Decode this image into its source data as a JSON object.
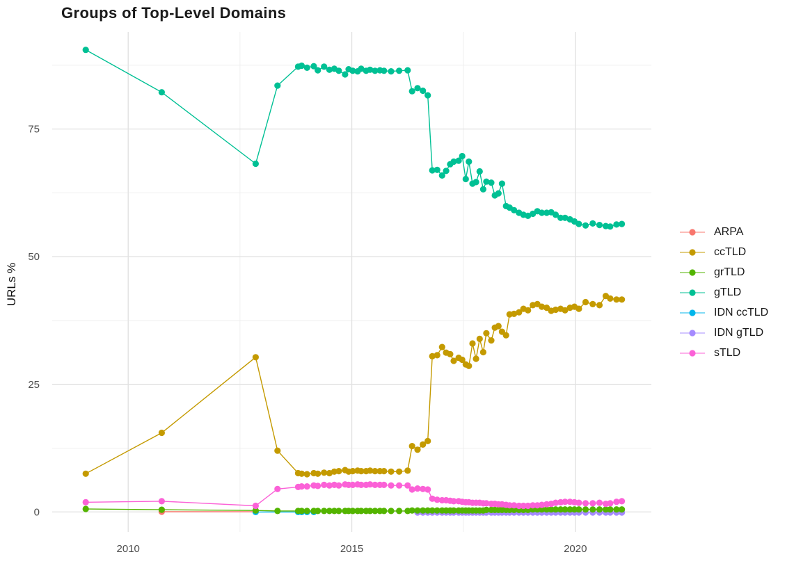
{
  "chart_data": {
    "type": "line",
    "title": "Groups of Top-Level Domains",
    "xlabel": "",
    "ylabel": "URLs %",
    "xlim": [
      2008.3,
      2021.7
    ],
    "ylim": [
      -3.9,
      94.0
    ],
    "legend_position": "right",
    "grid": {
      "x_major": [
        2010,
        2015,
        2020
      ],
      "x_minor": [
        2012.5,
        2017.5
      ],
      "y_major": [
        0,
        25,
        50,
        75
      ],
      "y_minor": [
        12.5,
        37.5,
        62.5,
        87.5
      ],
      "major_color": "#e2e2e2",
      "minor_color": "#efefef"
    },
    "x_ticks": [
      {
        "value": 2010,
        "label": "2010"
      },
      {
        "value": 2015,
        "label": "2015"
      },
      {
        "value": 2020,
        "label": "2020"
      }
    ],
    "y_ticks": [
      {
        "value": 0,
        "label": "0"
      },
      {
        "value": 25,
        "label": "25"
      },
      {
        "value": 50,
        "label": "50"
      },
      {
        "value": 75,
        "label": "75"
      }
    ],
    "series": [
      {
        "key": "arpa",
        "label": "ARPA",
        "color": "#F8766D",
        "z": 1,
        "x": [
          2010.75,
          2012.85
        ],
        "y": [
          0.05,
          0.05
        ]
      },
      {
        "key": "cctld",
        "label": "ccTLD",
        "color": "#C49A00",
        "z": 2,
        "x": [
          2009.05,
          2010.75,
          2012.85,
          2013.34,
          2013.8,
          2013.88,
          2014.0,
          2014.15,
          2014.24,
          2014.38,
          2014.5,
          2014.61,
          2014.71,
          2014.85,
          2014.93,
          2015.02,
          2015.13,
          2015.21,
          2015.32,
          2015.41,
          2015.52,
          2015.63,
          2015.72,
          2015.88,
          2016.06,
          2016.25,
          2016.35,
          2016.47,
          2016.59,
          2016.7,
          2016.8,
          2016.91,
          2017.02,
          2017.11,
          2017.2,
          2017.28,
          2017.39,
          2017.47,
          2017.55,
          2017.62,
          2017.7,
          2017.78,
          2017.86,
          2017.94,
          2018.01,
          2018.12,
          2018.2,
          2018.28,
          2018.36,
          2018.45,
          2018.53,
          2018.63,
          2018.74,
          2018.84,
          2018.94,
          2019.05,
          2019.15,
          2019.25,
          2019.36,
          2019.46,
          2019.56,
          2019.67,
          2019.77,
          2019.88,
          2019.98,
          2020.08,
          2020.23,
          2020.39,
          2020.54,
          2020.68,
          2020.78,
          2020.92,
          2021.04
        ],
        "y": [
          7.5,
          15.5,
          30.3,
          12.0,
          7.6,
          7.5,
          7.4,
          7.6,
          7.5,
          7.7,
          7.6,
          7.9,
          8.0,
          8.2,
          7.9,
          8.0,
          8.1,
          8.0,
          8.0,
          8.1,
          8.0,
          8.0,
          8.0,
          7.9,
          7.9,
          8.1,
          12.9,
          12.2,
          13.2,
          13.9,
          30.5,
          30.7,
          32.3,
          31.2,
          30.9,
          29.6,
          30.2,
          29.8,
          28.9,
          28.6,
          33.0,
          30.0,
          33.9,
          31.3,
          35.0,
          33.6,
          36.1,
          36.4,
          35.3,
          34.6,
          38.7,
          38.8,
          39.1,
          39.8,
          39.5,
          40.5,
          40.7,
          40.2,
          40.0,
          39.4,
          39.6,
          39.8,
          39.5,
          40.0,
          40.2,
          39.8,
          41.1,
          40.7,
          40.5,
          42.3,
          41.8,
          41.6,
          41.6
        ]
      },
      {
        "key": "grtld",
        "label": "grTLD",
        "color": "#53B400",
        "z": 5,
        "x": [
          2009.05,
          2010.75,
          2012.85,
          2013.34,
          2013.8,
          2013.88,
          2014.0,
          2014.15,
          2014.24,
          2014.38,
          2014.5,
          2014.61,
          2014.71,
          2014.85,
          2014.93,
          2015.02,
          2015.13,
          2015.21,
          2015.32,
          2015.41,
          2015.52,
          2015.63,
          2015.72,
          2015.88,
          2016.06,
          2016.25,
          2016.35,
          2016.47,
          2016.59,
          2016.7,
          2016.8,
          2016.91,
          2017.02,
          2017.11,
          2017.2,
          2017.28,
          2017.39,
          2017.47,
          2017.55,
          2017.62,
          2017.7,
          2017.78,
          2017.86,
          2017.94,
          2018.01,
          2018.12,
          2018.2,
          2018.28,
          2018.36,
          2018.45,
          2018.53,
          2018.63,
          2018.74,
          2018.84,
          2018.94,
          2019.05,
          2019.15,
          2019.25,
          2019.36,
          2019.46,
          2019.56,
          2019.67,
          2019.77,
          2019.88,
          2019.98,
          2020.08,
          2020.23,
          2020.39,
          2020.54,
          2020.68,
          2020.78,
          2020.92,
          2021.04
        ],
        "y": [
          0.6,
          0.45,
          0.3,
          0.2,
          0.2,
          0.2,
          0.2,
          0.2,
          0.2,
          0.2,
          0.2,
          0.2,
          0.2,
          0.2,
          0.2,
          0.2,
          0.2,
          0.2,
          0.2,
          0.2,
          0.2,
          0.2,
          0.2,
          0.2,
          0.2,
          0.2,
          0.3,
          0.3,
          0.3,
          0.3,
          0.3,
          0.3,
          0.3,
          0.3,
          0.3,
          0.3,
          0.3,
          0.3,
          0.3,
          0.3,
          0.3,
          0.3,
          0.3,
          0.3,
          0.4,
          0.4,
          0.4,
          0.4,
          0.4,
          0.4,
          0.4,
          0.4,
          0.4,
          0.4,
          0.4,
          0.5,
          0.5,
          0.5,
          0.5,
          0.5,
          0.5,
          0.5,
          0.5,
          0.5,
          0.5,
          0.5,
          0.5,
          0.5,
          0.5,
          0.5,
          0.5,
          0.5,
          0.5
        ]
      },
      {
        "key": "gtld",
        "label": "gTLD",
        "color": "#00C094",
        "z": 6,
        "x": [
          2009.05,
          2010.75,
          2012.85,
          2013.34,
          2013.8,
          2013.88,
          2014.0,
          2014.15,
          2014.24,
          2014.38,
          2014.5,
          2014.61,
          2014.71,
          2014.85,
          2014.93,
          2015.02,
          2015.13,
          2015.21,
          2015.32,
          2015.41,
          2015.52,
          2015.63,
          2015.72,
          2015.88,
          2016.06,
          2016.25,
          2016.35,
          2016.47,
          2016.59,
          2016.7,
          2016.8,
          2016.91,
          2017.02,
          2017.11,
          2017.2,
          2017.28,
          2017.39,
          2017.47,
          2017.55,
          2017.62,
          2017.7,
          2017.78,
          2017.86,
          2017.94,
          2018.01,
          2018.12,
          2018.2,
          2018.28,
          2018.36,
          2018.45,
          2018.53,
          2018.63,
          2018.74,
          2018.84,
          2018.94,
          2019.05,
          2019.15,
          2019.25,
          2019.36,
          2019.46,
          2019.56,
          2019.67,
          2019.77,
          2019.88,
          2019.98,
          2020.08,
          2020.23,
          2020.39,
          2020.54,
          2020.68,
          2020.78,
          2020.92,
          2021.04
        ],
        "y": [
          90.5,
          82.2,
          68.2,
          83.5,
          87.2,
          87.4,
          87.0,
          87.3,
          86.5,
          87.2,
          86.6,
          86.8,
          86.4,
          85.7,
          86.7,
          86.4,
          86.3,
          86.8,
          86.4,
          86.6,
          86.4,
          86.5,
          86.4,
          86.3,
          86.4,
          86.5,
          82.4,
          83.0,
          82.5,
          81.6,
          66.9,
          67.0,
          65.9,
          66.8,
          68.1,
          68.6,
          68.8,
          69.7,
          65.2,
          68.6,
          64.3,
          64.6,
          66.7,
          63.2,
          64.7,
          64.5,
          62.0,
          62.4,
          64.3,
          59.9,
          59.6,
          59.1,
          58.6,
          58.2,
          58.0,
          58.4,
          58.9,
          58.6,
          58.6,
          58.7,
          58.2,
          57.6,
          57.6,
          57.3,
          56.9,
          56.4,
          56.1,
          56.5,
          56.2,
          56.0,
          55.9,
          56.3,
          56.4
        ]
      },
      {
        "key": "idn-cctld",
        "label": "IDN ccTLD",
        "color": "#00B6EB",
        "z": 4,
        "x": [
          2012.85,
          2013.8,
          2013.88,
          2014.0,
          2014.15
        ],
        "y": [
          0.0,
          0.0,
          0.0,
          0.0,
          0.0
        ]
      },
      {
        "key": "idn-gtld",
        "label": "IDN gTLD",
        "color": "#A58AFF",
        "z": 3,
        "x": [
          2016.47,
          2016.59,
          2016.7,
          2016.8,
          2016.91,
          2017.02,
          2017.11,
          2017.2,
          2017.28,
          2017.39,
          2017.47,
          2017.55,
          2017.62,
          2017.7,
          2017.78,
          2017.86,
          2017.94,
          2018.01,
          2018.12,
          2018.2,
          2018.28,
          2018.36,
          2018.45,
          2018.53,
          2018.63,
          2018.74,
          2018.84,
          2018.94,
          2019.05,
          2019.15,
          2019.25,
          2019.36,
          2019.46,
          2019.56,
          2019.67,
          2019.77,
          2019.88,
          2019.98,
          2020.08,
          2020.23,
          2020.39,
          2020.54,
          2020.68,
          2020.78,
          2020.92,
          2021.04
        ],
        "y": [
          -0.1,
          -0.1,
          -0.1,
          -0.1,
          -0.1,
          -0.1,
          -0.1,
          -0.1,
          -0.1,
          -0.1,
          -0.1,
          -0.1,
          -0.1,
          -0.1,
          -0.1,
          -0.1,
          -0.1,
          -0.1,
          -0.1,
          -0.1,
          -0.1,
          -0.1,
          -0.1,
          -0.1,
          -0.1,
          -0.1,
          -0.1,
          -0.1,
          -0.1,
          -0.1,
          -0.1,
          -0.1,
          -0.1,
          -0.1,
          -0.1,
          -0.1,
          -0.1,
          -0.1,
          -0.1,
          -0.1,
          -0.1,
          -0.1,
          -0.1,
          -0.1,
          -0.1,
          -0.1
        ]
      },
      {
        "key": "stld",
        "label": "sTLD",
        "color": "#FB61D7",
        "z": 7,
        "x": [
          2009.05,
          2010.75,
          2012.85,
          2013.34,
          2013.8,
          2013.88,
          2014.0,
          2014.15,
          2014.24,
          2014.38,
          2014.5,
          2014.61,
          2014.71,
          2014.85,
          2014.93,
          2015.02,
          2015.13,
          2015.21,
          2015.32,
          2015.41,
          2015.52,
          2015.63,
          2015.72,
          2015.88,
          2016.06,
          2016.25,
          2016.35,
          2016.47,
          2016.59,
          2016.7,
          2016.8,
          2016.91,
          2017.02,
          2017.11,
          2017.2,
          2017.28,
          2017.39,
          2017.47,
          2017.55,
          2017.62,
          2017.7,
          2017.78,
          2017.86,
          2017.94,
          2018.01,
          2018.12,
          2018.2,
          2018.28,
          2018.36,
          2018.45,
          2018.53,
          2018.63,
          2018.74,
          2018.84,
          2018.94,
          2019.05,
          2019.15,
          2019.25,
          2019.36,
          2019.46,
          2019.56,
          2019.67,
          2019.77,
          2019.88,
          2019.98,
          2020.08,
          2020.23,
          2020.39,
          2020.54,
          2020.68,
          2020.78,
          2020.92,
          2021.04
        ],
        "y": [
          1.9,
          2.1,
          1.2,
          4.5,
          4.9,
          5.0,
          5.0,
          5.2,
          5.1,
          5.3,
          5.2,
          5.3,
          5.2,
          5.4,
          5.3,
          5.3,
          5.4,
          5.3,
          5.3,
          5.4,
          5.3,
          5.3,
          5.3,
          5.2,
          5.2,
          5.2,
          4.4,
          4.6,
          4.5,
          4.4,
          2.6,
          2.4,
          2.3,
          2.3,
          2.2,
          2.1,
          2.1,
          2.0,
          1.9,
          1.9,
          1.8,
          1.8,
          1.8,
          1.7,
          1.7,
          1.6,
          1.6,
          1.5,
          1.5,
          1.4,
          1.3,
          1.3,
          1.2,
          1.2,
          1.2,
          1.3,
          1.3,
          1.4,
          1.5,
          1.6,
          1.8,
          1.9,
          2.0,
          2.0,
          1.9,
          1.8,
          1.7,
          1.7,
          1.8,
          1.6,
          1.7,
          2.0,
          2.1
        ]
      }
    ]
  }
}
